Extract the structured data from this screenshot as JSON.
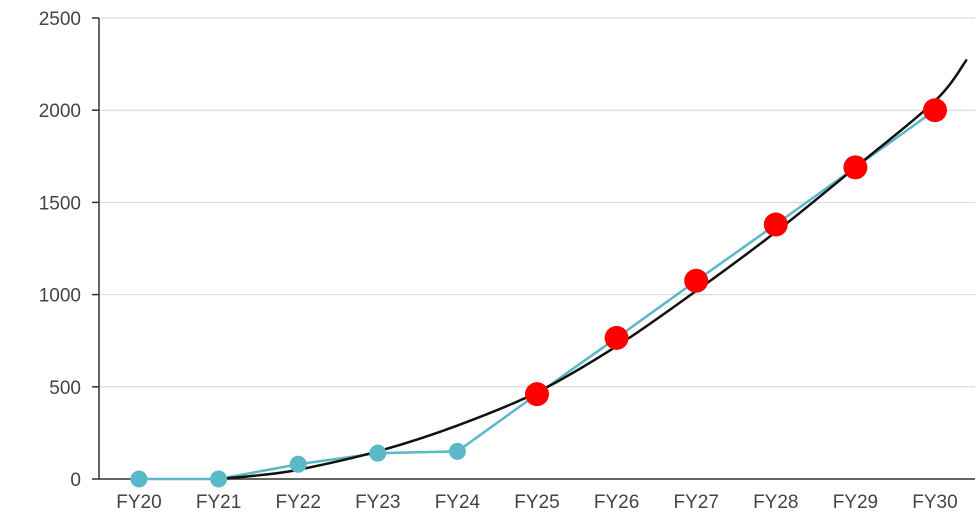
{
  "chart_data": {
    "type": "line",
    "title": "",
    "xlabel": "",
    "ylabel": "",
    "categories": [
      "FY20",
      "FY21",
      "FY22",
      "FY23",
      "FY24",
      "FY25",
      "FY26",
      "FY27",
      "FY28",
      "FY29",
      "FY30"
    ],
    "ylim": [
      0,
      2500
    ],
    "yticks": [
      0,
      500,
      1000,
      1500,
      2000,
      2500
    ],
    "grid": true,
    "legend": "none",
    "series": [
      {
        "kind": "actual",
        "color": "#5bb8c9",
        "values": [
          0,
          0,
          80,
          140,
          150,
          null,
          null,
          null,
          null,
          null,
          null
        ]
      },
      {
        "kind": "projected",
        "color": "#ff0000",
        "values": [
          null,
          null,
          null,
          null,
          null,
          460,
          765,
          1075,
          1380,
          1690,
          2000
        ]
      },
      {
        "kind": "trend",
        "color": "#111111",
        "x": [
          1,
          1.5,
          2,
          3,
          4,
          5,
          6,
          7,
          8,
          9,
          10,
          10.4
        ],
        "values": [
          0,
          20,
          50,
          150,
          290,
          470,
          720,
          1020,
          1340,
          1690,
          2050,
          2275
        ]
      }
    ]
  }
}
